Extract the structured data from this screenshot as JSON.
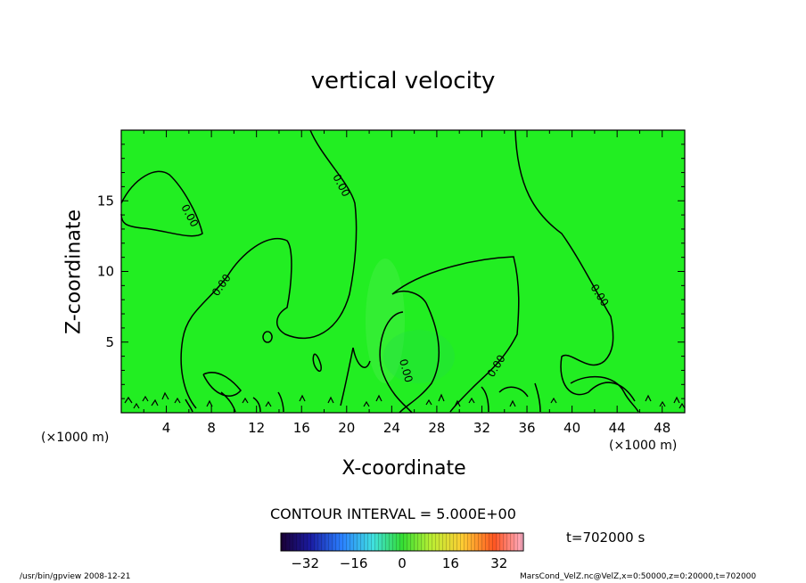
{
  "chart_data": {
    "type": "contour",
    "title": "vertical velocity",
    "xlabel": "X-coordinate",
    "ylabel": "Z-coordinate",
    "x_unit": "(×1000 m)",
    "xlim": [
      0,
      50
    ],
    "ylim": [
      0,
      20
    ],
    "x_ticks": [
      4,
      8,
      12,
      16,
      20,
      24,
      28,
      32,
      36,
      40,
      44,
      48
    ],
    "y_ticks": [
      5,
      10,
      15
    ],
    "contour_level_label": "0.00",
    "contour_interval_text": "CONTOUR INTERVAL = 5.000E+00",
    "colorbar": {
      "range": [
        -40,
        40
      ],
      "ticks": [
        -32,
        -16,
        0,
        16,
        32
      ]
    },
    "time_label": "t=702000 s",
    "background_color": "#22ee22"
  },
  "footer": {
    "left": "/usr/bin/gpview   2008-12-21",
    "right": "MarsCond_VelZ.nc@VelZ,x=0:50000,z=0:20000,t=702000"
  }
}
